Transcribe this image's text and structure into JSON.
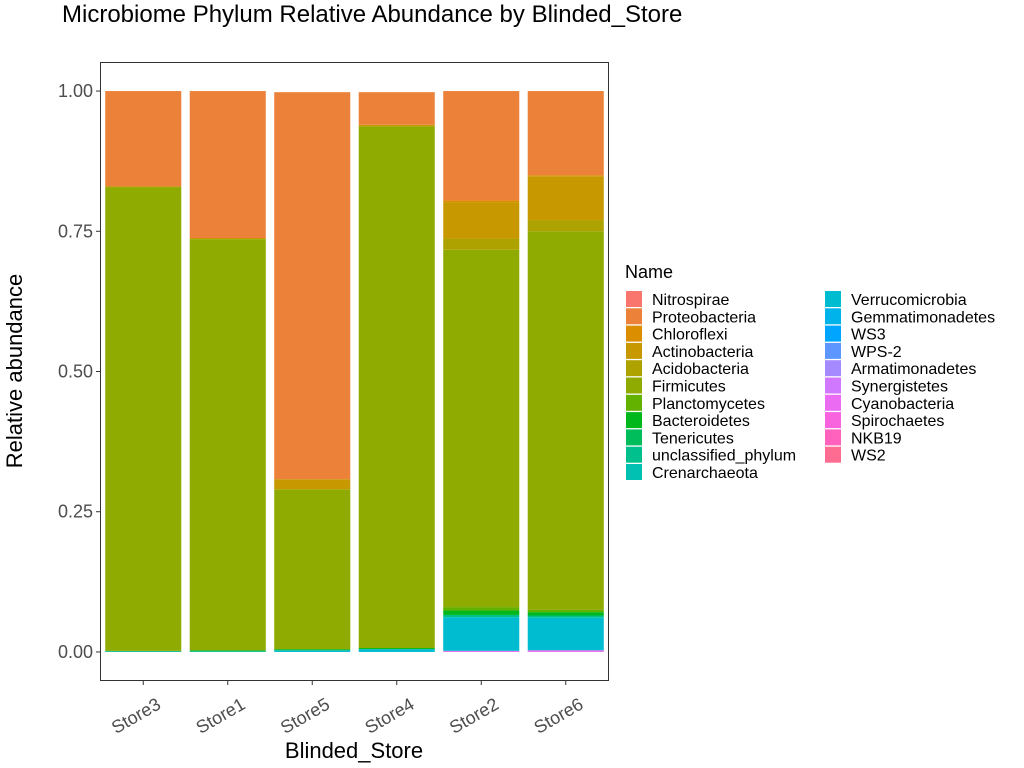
{
  "chart_data": {
    "type": "bar",
    "stacked": true,
    "title": "Microbiome Phylum Relative Abundance by Blinded_Store",
    "xlabel": "Blinded_Store",
    "ylabel": "Relative abundance",
    "ylim": [
      -0.05,
      1.05
    ],
    "yticks": [
      "0.00",
      "0.25",
      "0.50",
      "0.75",
      "1.00"
    ],
    "ytick_values": [
      0,
      0.25,
      0.5,
      0.75,
      1.0
    ],
    "grid": false,
    "legend_title": "Name",
    "legend_position": "right",
    "categories": [
      "Store3",
      "Store1",
      "Store5",
      "Store4",
      "Store2",
      "Store6"
    ],
    "series": [
      {
        "name": "Nitrospirae",
        "color": "#F8766D",
        "values": [
          0,
          0,
          0,
          0,
          0,
          0
        ]
      },
      {
        "name": "Proteobacteria",
        "color": "#EC8239",
        "values": [
          0.17,
          0.262,
          0.69,
          0.058,
          0.195,
          0.15
        ]
      },
      {
        "name": "Chloroflexi",
        "color": "#DB8E00",
        "values": [
          0,
          0,
          0,
          0,
          0.003,
          0.002
        ]
      },
      {
        "name": "Actinobacteria",
        "color": "#C79800",
        "values": [
          0,
          0.002,
          0.018,
          0.003,
          0.065,
          0.078
        ]
      },
      {
        "name": "Acidobacteria",
        "color": "#AEA200",
        "values": [
          0.002,
          0,
          0,
          0,
          0.02,
          0.02
        ]
      },
      {
        "name": "Firmicutes",
        "color": "#8FAA00",
        "values": [
          0.826,
          0.733,
          0.285,
          0.93,
          0.637,
          0.675
        ]
      },
      {
        "name": "Planctomycetes",
        "color": "#64B200",
        "values": [
          0,
          0,
          0,
          0,
          0.006,
          0.004
        ]
      },
      {
        "name": "Bacteroidetes",
        "color": "#00B81B",
        "values": [
          0.001,
          0.002,
          0.002,
          0.002,
          0.008,
          0.006
        ]
      },
      {
        "name": "Tenericutes",
        "color": "#00BD5C",
        "values": [
          0,
          0,
          0,
          0,
          0,
          0
        ]
      },
      {
        "name": "unclassified_phylum",
        "color": "#00C08D",
        "values": [
          0,
          0,
          0,
          0,
          0.004,
          0.004
        ]
      },
      {
        "name": "Crenarchaeota",
        "color": "#00C1B2",
        "values": [
          0,
          0,
          0,
          0,
          0,
          0
        ]
      },
      {
        "name": "Verrucomicrobia",
        "color": "#00BCD1",
        "values": [
          0.001,
          0.001,
          0.003,
          0.005,
          0.06,
          0.058
        ]
      },
      {
        "name": "Gemmatimonadetes",
        "color": "#00B3EA",
        "values": [
          0,
          0,
          0,
          0,
          0,
          0
        ]
      },
      {
        "name": "WS3",
        "color": "#00A5FF",
        "values": [
          0,
          0,
          0,
          0,
          0,
          0
        ]
      },
      {
        "name": "WPS-2",
        "color": "#5E96FF",
        "values": [
          0,
          0,
          0,
          0,
          0,
          0
        ]
      },
      {
        "name": "Armatimonadetes",
        "color": "#A58AFF",
        "values": [
          0,
          0,
          0,
          0,
          0,
          0
        ]
      },
      {
        "name": "Synergistetes",
        "color": "#D078FF",
        "values": [
          0,
          0,
          0,
          0,
          0,
          0
        ]
      },
      {
        "name": "Cyanobacteria",
        "color": "#EB6BF2",
        "values": [
          0,
          0,
          0,
          0,
          0.002,
          0.003
        ]
      },
      {
        "name": "Spirochaetes",
        "color": "#F863DE",
        "values": [
          0,
          0,
          0,
          0,
          0,
          0
        ]
      },
      {
        "name": "NKB19",
        "color": "#FF62BC",
        "values": [
          0,
          0,
          0,
          0,
          0,
          0
        ]
      },
      {
        "name": "WS2",
        "color": "#FF6C92",
        "values": [
          0,
          0,
          0,
          0,
          0,
          0
        ]
      }
    ]
  }
}
